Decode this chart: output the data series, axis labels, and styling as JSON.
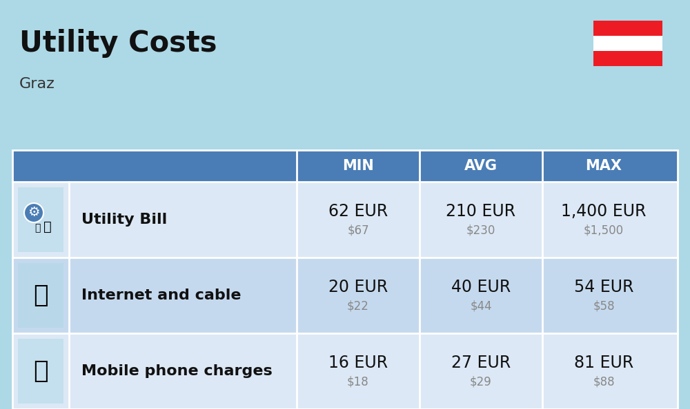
{
  "title": "Utility Costs",
  "subtitle": "Graz",
  "background_color": "#add8e6",
  "header_bg_color": "#4a7db5",
  "header_text_color": "#ffffff",
  "row_bg_colors": [
    "#dce8f5",
    "#c5d9ee",
    "#dce8f5"
  ],
  "icon_col_bg": "#b8cfe0",
  "table_border_color": "#ffffff",
  "col_headers": [
    "MIN",
    "AVG",
    "MAX"
  ],
  "rows": [
    {
      "label": "Utility Bill",
      "min_eur": "62 EUR",
      "min_usd": "$67",
      "avg_eur": "210 EUR",
      "avg_usd": "$230",
      "max_eur": "1,400 EUR",
      "max_usd": "$1,500"
    },
    {
      "label": "Internet and cable",
      "min_eur": "20 EUR",
      "min_usd": "$22",
      "avg_eur": "40 EUR",
      "avg_usd": "$44",
      "max_eur": "54 EUR",
      "max_usd": "$58"
    },
    {
      "label": "Mobile phone charges",
      "min_eur": "16 EUR",
      "min_usd": "$18",
      "avg_eur": "27 EUR",
      "avg_usd": "$29",
      "max_eur": "81 EUR",
      "max_usd": "$88"
    }
  ],
  "flag_colors": [
    "#ed1c24",
    "#ffffff",
    "#ed1c24"
  ],
  "eur_fontsize": 17,
  "usd_fontsize": 12,
  "label_fontsize": 16,
  "header_fontsize": 15,
  "title_fontsize": 30,
  "subtitle_fontsize": 16
}
